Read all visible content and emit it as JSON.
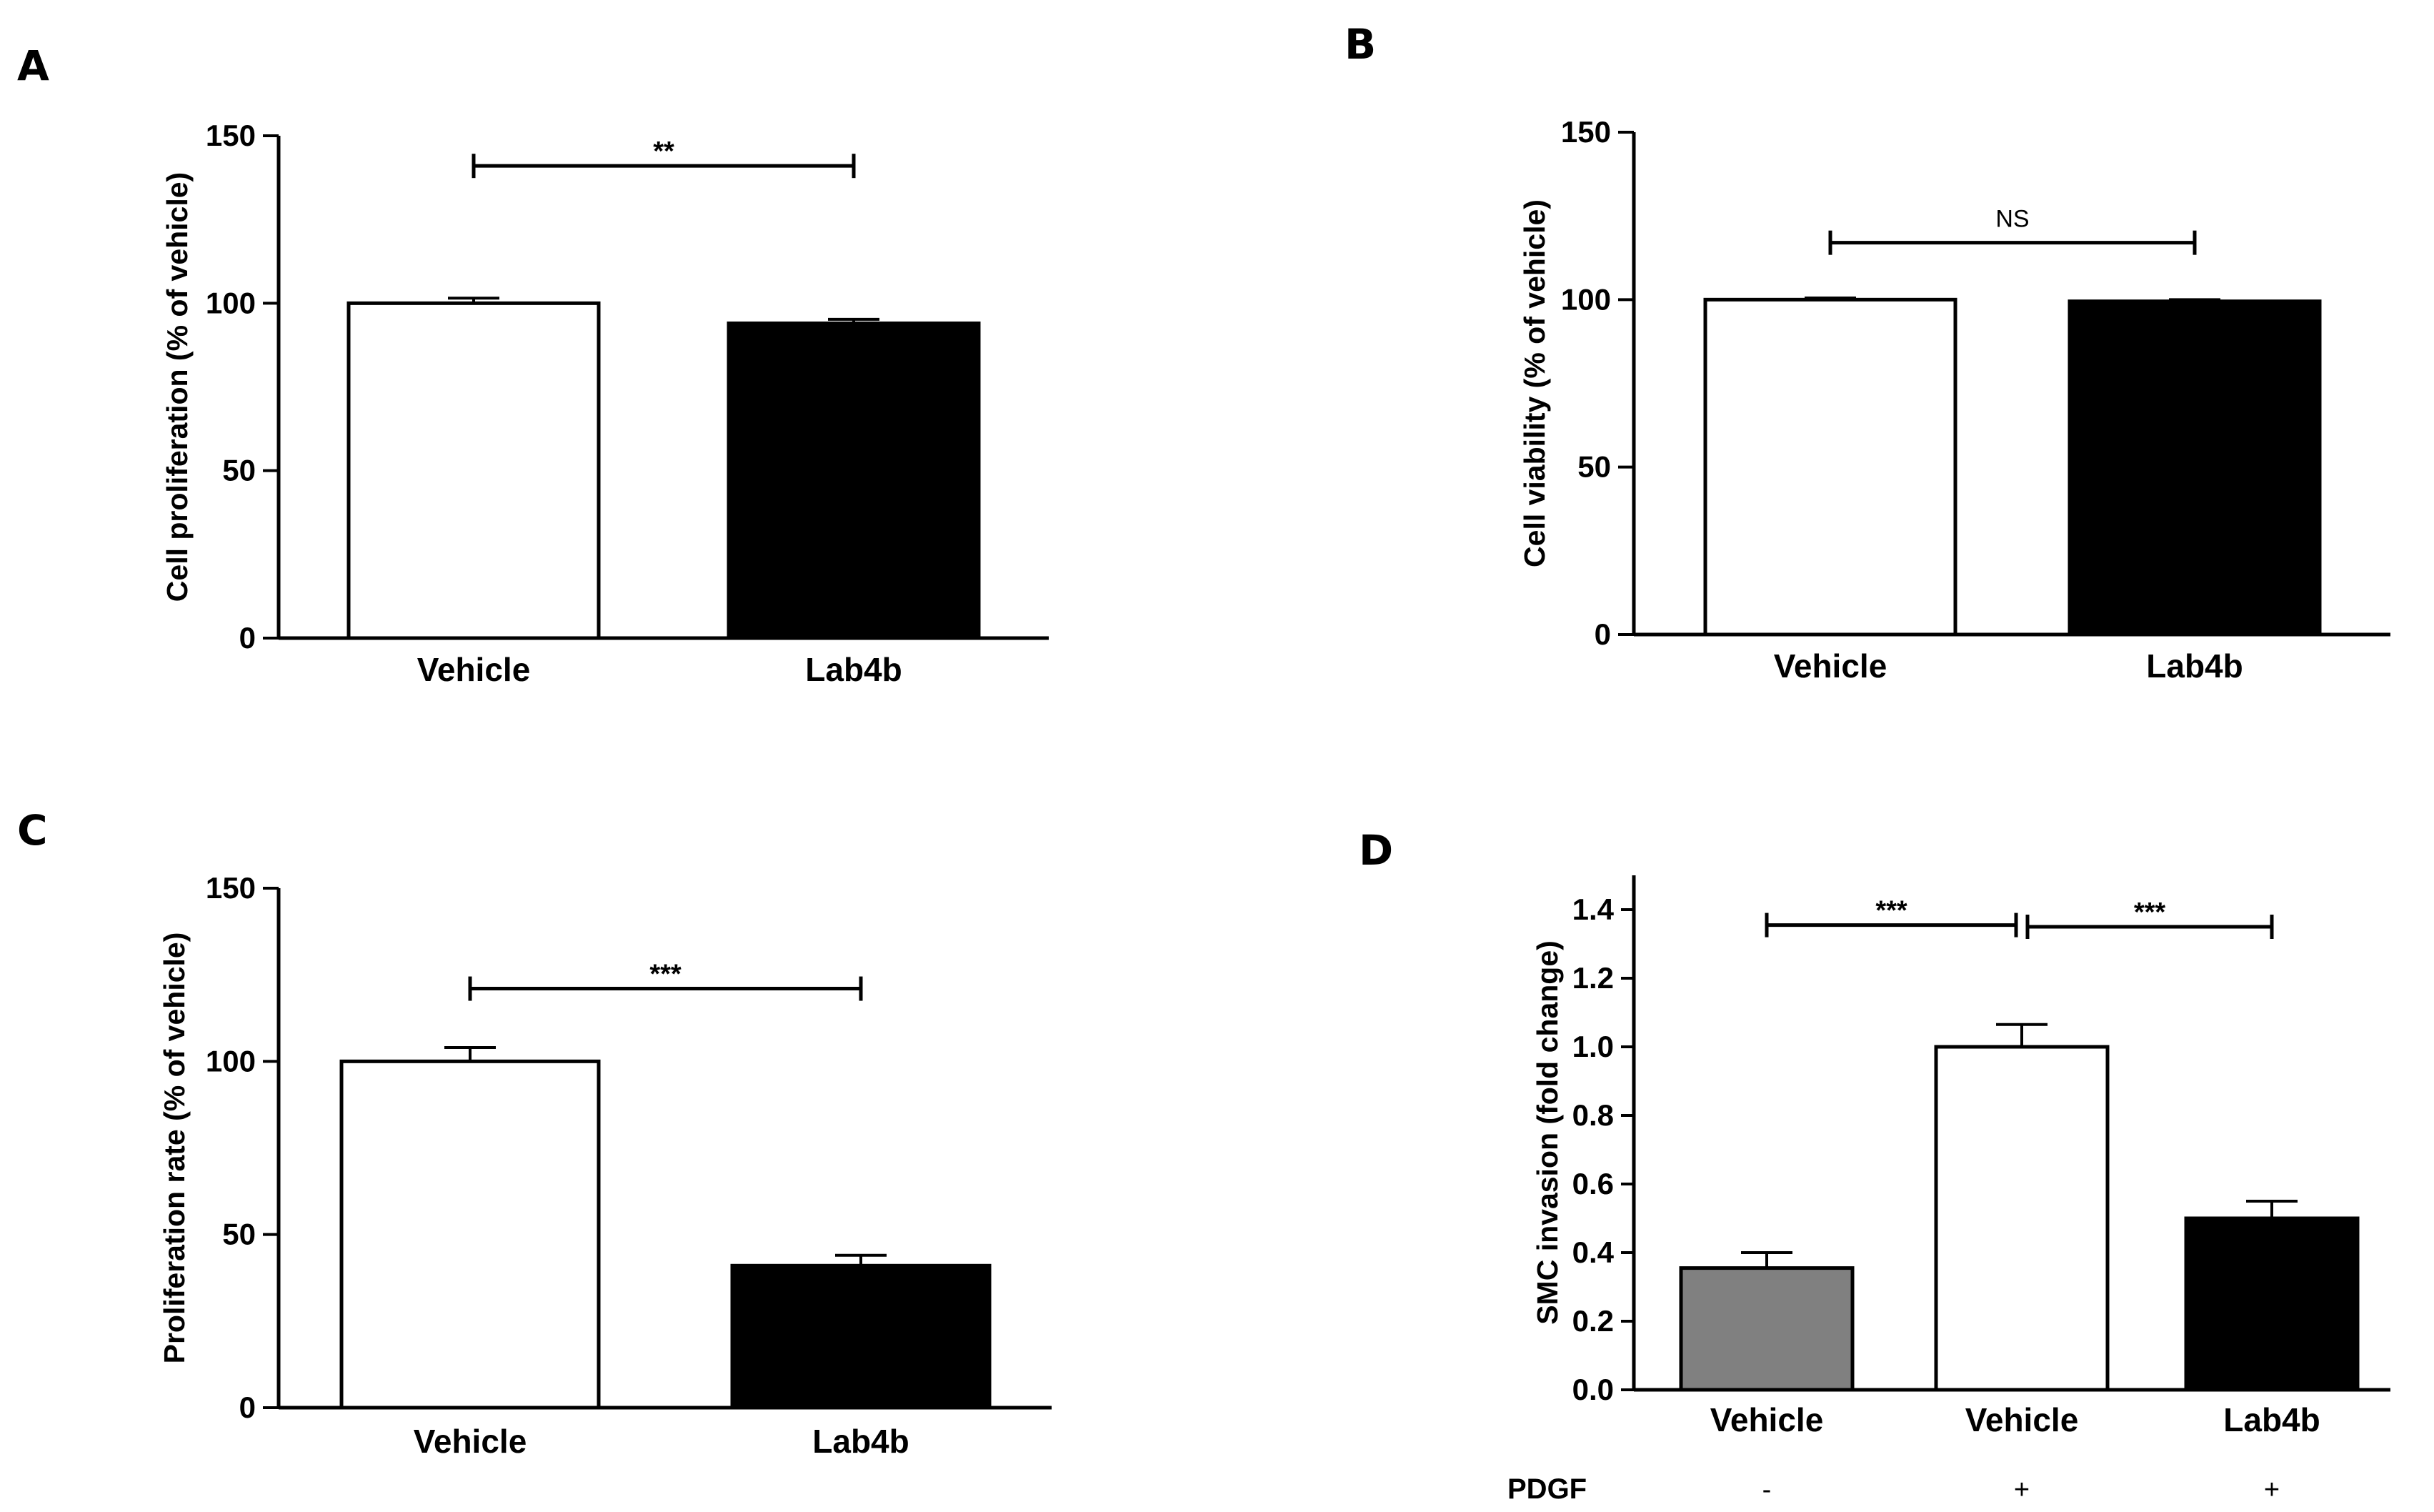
{
  "chart_data": [
    {
      "panel": "A",
      "type": "bar",
      "categories": [
        "Vehicle",
        "Lab4b"
      ],
      "values": [
        100,
        94
      ],
      "errors": [
        1.5,
        1.2
      ],
      "bar_colors": [
        "#ffffff",
        "#000000"
      ],
      "ylabel": "Cell proliferation (% of vehicle)",
      "ylim": [
        0,
        150
      ],
      "yticks": [
        "0",
        "50",
        "100",
        "150"
      ],
      "significance": [
        {
          "from": 0,
          "to": 1,
          "label": "**",
          "y": 141
        }
      ]
    },
    {
      "panel": "B",
      "type": "bar",
      "categories": [
        "Vehicle",
        "Lab4b"
      ],
      "values": [
        100,
        99.5
      ],
      "errors": [
        0.5,
        0.5
      ],
      "bar_colors": [
        "#ffffff",
        "#000000"
      ],
      "ylabel": "Cell viability (% of vehicle)",
      "ylim": [
        0,
        150
      ],
      "yticks": [
        "0",
        "50",
        "100",
        "150"
      ],
      "significance": [
        {
          "from": 0,
          "to": 1,
          "label": "NS",
          "y": 117
        }
      ]
    },
    {
      "panel": "C",
      "type": "bar",
      "categories": [
        "Vehicle",
        "Lab4b"
      ],
      "values": [
        100,
        41
      ],
      "errors": [
        4,
        3
      ],
      "bar_colors": [
        "#ffffff",
        "#000000"
      ],
      "ylabel": "Proliferation rate (% of vehicle)",
      "ylim": [
        0,
        150
      ],
      "yticks": [
        "0",
        "50",
        "100",
        "150"
      ],
      "significance": [
        {
          "from": 0,
          "to": 1,
          "label": "***",
          "y": 121
        }
      ]
    },
    {
      "panel": "D",
      "type": "bar",
      "categories": [
        "Vehicle",
        "Vehicle",
        "Lab4b"
      ],
      "values": [
        0.355,
        1.0,
        0.5
      ],
      "errors": [
        0.045,
        0.065,
        0.05
      ],
      "bar_colors": [
        "#808080",
        "#ffffff",
        "#000000"
      ],
      "ylabel": "SMC invasion (fold change)",
      "ylim": [
        0,
        1.5
      ],
      "yticks": [
        "0.0",
        "0.2",
        "0.4",
        "0.6",
        "0.8",
        "1.0",
        "1.2",
        "1.4"
      ],
      "significance": [
        {
          "from": 0,
          "to": 1,
          "label": "***",
          "y": 1.355
        },
        {
          "from": 1,
          "to": 2,
          "label": "***",
          "y": 1.35
        }
      ],
      "treatment_row": {
        "label": "PDGF",
        "values": [
          "-",
          "+",
          "+"
        ]
      }
    }
  ]
}
